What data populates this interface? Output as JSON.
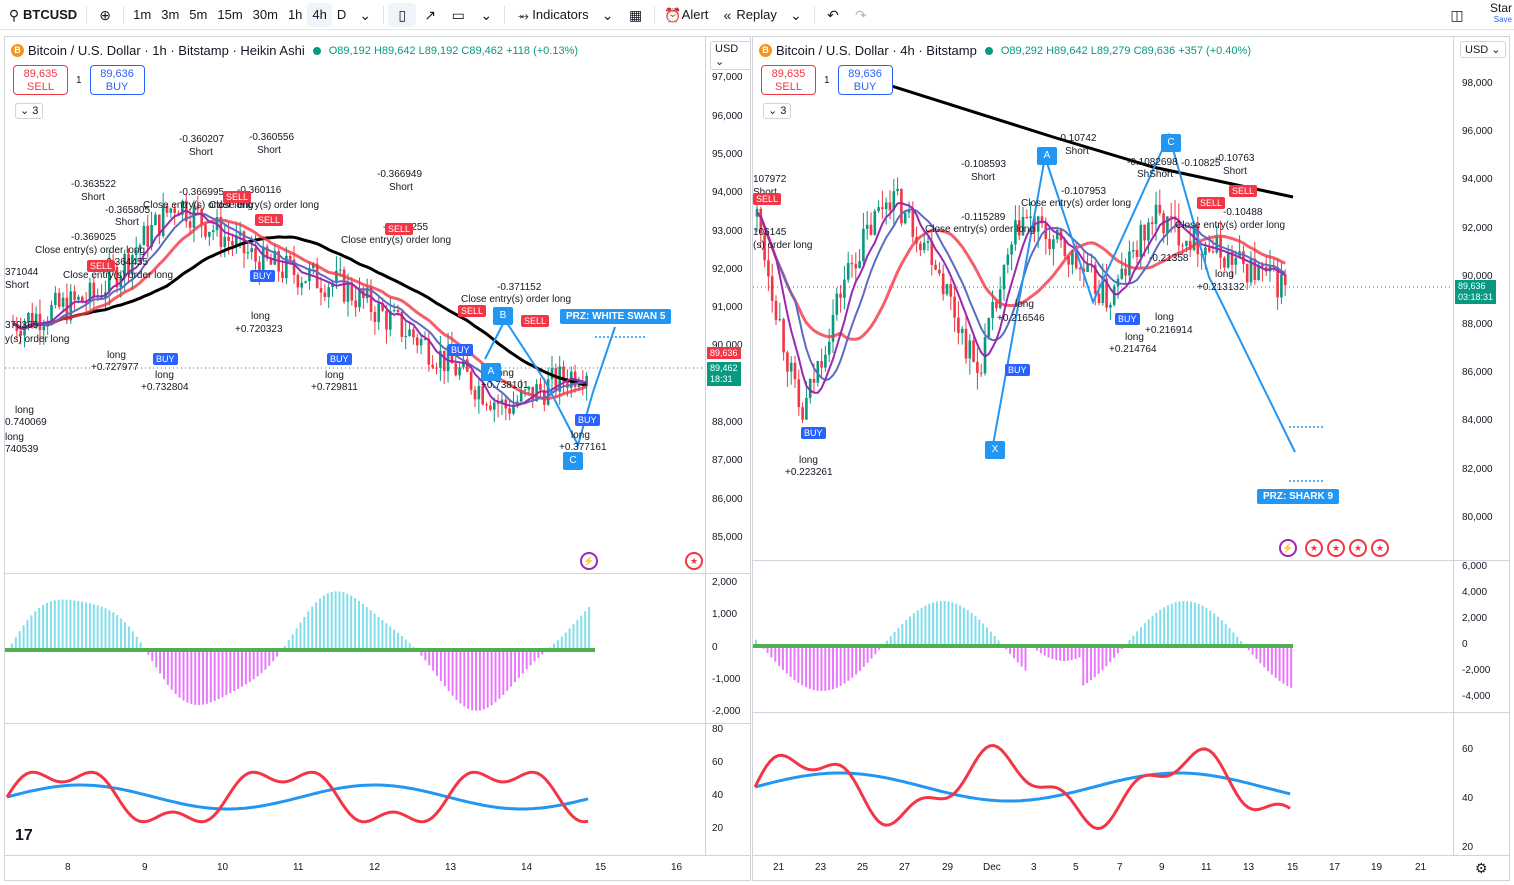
{
  "toolbar": {
    "symbol": "BTCUSD",
    "intervals": [
      "1m",
      "3m",
      "5m",
      "15m",
      "30m",
      "1h",
      "4h",
      "D"
    ],
    "selected_interval": "4h",
    "indicators_label": "Indicators",
    "alert_label": "Alert",
    "replay_label": "Replay",
    "star_label": "Star",
    "save_label": "Save"
  },
  "left": {
    "legend": "Bitcoin / U.S. Dollar · 1h · Bitstamp · Heikin Ashi",
    "ohlc": "O89,192 H89,642 L89,192 C89,462 +118 (+0.13%)",
    "sell_price": "89,635",
    "sell_label": "SELL",
    "buy_price": "89,636",
    "buy_label": "BUY",
    "qty": "1",
    "collapse_count": "3",
    "currency": "USD",
    "price_ticks": [
      "97,000",
      "96,000",
      "95,000",
      "94,000",
      "93,000",
      "92,000",
      "91,000",
      "90,000",
      "88,000",
      "87,000",
      "86,000",
      "85,000"
    ],
    "osc_ticks": [
      "2,000",
      "1,000",
      "0",
      "-1,000",
      "-2,000"
    ],
    "rsi_ticks": [
      "80",
      "60",
      "40",
      "20"
    ],
    "x_ticks": [
      "8",
      "9",
      "10",
      "11",
      "12",
      "13",
      "14",
      "15",
      "16"
    ],
    "tag_red": "89,636",
    "tag_green_price": "89,462",
    "tag_green_time": "18:31",
    "prz": "PRZ: WHITE SWAN 5",
    "annotations": [
      {
        "t": "-0.360207"
      },
      {
        "t": "Short"
      },
      {
        "t": "-0.360556"
      },
      {
        "t": "Short"
      },
      {
        "t": "-0.363522"
      },
      {
        "t": "Short"
      },
      {
        "t": "-0.366995"
      },
      {
        "t": "-0.360116"
      },
      {
        "t": "-0.365805"
      },
      {
        "t": "Short"
      },
      {
        "t": "-0.369025"
      },
      {
        "t": "Close entry(s) order long"
      },
      {
        "t": "Close entry(s) order long"
      },
      {
        "t": "Close entry(s) order long"
      },
      {
        "t": "-0.364455"
      },
      {
        "t": "Close entry(s) order long"
      },
      {
        "t": "-0.366949"
      },
      {
        "t": "Short"
      },
      {
        "t": "-0.369255"
      },
      {
        "t": "Close entry(s) order long"
      },
      {
        "t": "-0.371152"
      },
      {
        "t": "Close entry(s) order long"
      },
      {
        "t": "371044"
      },
      {
        "t": "Short"
      },
      {
        "t": "370365"
      },
      {
        "t": "y(s) order long"
      },
      {
        "t": "long"
      },
      {
        "t": "+0.727977"
      },
      {
        "t": "long"
      },
      {
        "t": "+0.732804"
      },
      {
        "t": "long"
      },
      {
        "t": "+0.720323"
      },
      {
        "t": "long"
      },
      {
        "t": "+0.729811"
      },
      {
        "t": "long"
      },
      {
        "t": "+0.738101"
      },
      {
        "t": "long"
      },
      {
        "t": "+0.377161"
      },
      {
        "t": "long"
      },
      {
        "t": "0.740069"
      },
      {
        "t": "long"
      },
      {
        "t": "740539"
      }
    ]
  },
  "right": {
    "legend": "Bitcoin / U.S. Dollar · 4h · Bitstamp",
    "ohlc": "O89,292 H89,642 L89,279 C89,636 +357 (+0.40%)",
    "sell_price": "89,635",
    "sell_label": "SELL",
    "buy_price": "89,636",
    "buy_label": "BUY",
    "qty": "1",
    "collapse_count": "3",
    "currency": "USD",
    "price_ticks": [
      "98,000",
      "96,000",
      "94,000",
      "92,000",
      "90,000",
      "88,000",
      "86,000",
      "84,000",
      "82,000",
      "80,000"
    ],
    "osc_ticks": [
      "6,000",
      "4,000",
      "2,000",
      "0",
      "-2,000",
      "-4,000"
    ],
    "rsi_ticks": [
      "60",
      "40",
      "20"
    ],
    "x_ticks": [
      "21",
      "23",
      "25",
      "27",
      "29",
      "Dec",
      "3",
      "5",
      "7",
      "9",
      "11",
      "13",
      "15",
      "17",
      "19",
      "21"
    ],
    "tag_green_price": "89,636",
    "tag_green_time": "03:18:31",
    "prz": "PRZ: SHARK 9",
    "annotations": [
      {
        "t": "107972"
      },
      {
        "t": "Short"
      },
      {
        "t": "106145"
      },
      {
        "t": "(s) order long"
      },
      {
        "t": "-0.108593"
      },
      {
        "t": "Short"
      },
      {
        "t": "-0.115289"
      },
      {
        "t": "Close entry(s) order long"
      },
      {
        "t": "-0.10742"
      },
      {
        "t": "Short"
      },
      {
        "t": "-0.107953"
      },
      {
        "t": "Close entry(s) order long"
      },
      {
        "t": "-0.1082698"
      },
      {
        "t": "ShShort"
      },
      {
        "t": "-0.10825"
      },
      {
        "t": "-0.10763"
      },
      {
        "t": "Short"
      },
      {
        "t": "-0.10488"
      },
      {
        "t": "Close entry(s) order long"
      },
      {
        "t": "long"
      },
      {
        "t": "+0.216546"
      },
      {
        "t": "long"
      },
      {
        "t": "+0.216914"
      },
      {
        "t": "long"
      },
      {
        "t": "+0.214764"
      },
      {
        "t": "long"
      },
      {
        "t": "+0.213132"
      },
      {
        "t": "long"
      },
      {
        "t": "+0.223261"
      },
      {
        "t": "-0.21358"
      }
    ]
  },
  "chart_data": [
    {
      "type": "line",
      "title": "Bitcoin / U.S. Dollar · 1h · Bitstamp · Heikin Ashi",
      "xlabel": "",
      "ylabel": "",
      "categories": [
        "8",
        "9",
        "10",
        "11",
        "12",
        "13",
        "14",
        "15"
      ],
      "series": [
        {
          "values": [
            90600,
            91300,
            93800,
            92200,
            91600,
            90100,
            88400,
            89462
          ]
        }
      ],
      "ylim": [
        84500,
        97300
      ]
    },
    {
      "type": "line",
      "title": "Bitcoin / U.S. Dollar · 4h · Bitstamp",
      "xlabel": "",
      "ylabel": "",
      "categories": [
        "21",
        "23",
        "25",
        "27",
        "29",
        "Dec",
        "3",
        "5",
        "7",
        "9",
        "11",
        "13",
        "15"
      ],
      "series": [
        {
          "values": [
            92500,
            84000,
            90000,
            93500,
            91000,
            86000,
            92500,
            91000,
            89000,
            92500,
            91500,
            90500,
            89636
          ]
        }
      ],
      "ylim": [
        79000,
        98500
      ]
    }
  ]
}
